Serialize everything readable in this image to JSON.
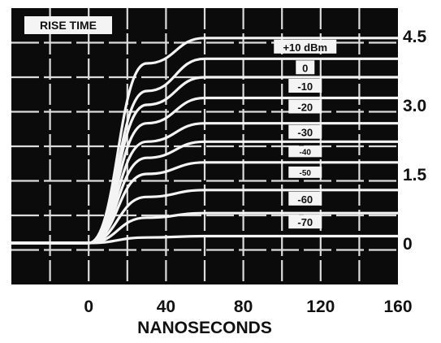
{
  "colors": {
    "background": "#ffffff",
    "screen": "#0b0b0b",
    "trace": "#f4f4f4",
    "grid": "#dcdcdc",
    "text": "#111111"
  },
  "chart_data": {
    "type": "line",
    "title": "RISE TIME",
    "xlabel": "NANOSECONDS",
    "ylabel": "",
    "xlim": [
      -40,
      160
    ],
    "ylim": [
      -0.9,
      5.1
    ],
    "x_ticks": [
      "0",
      "40",
      "80",
      "120",
      "160"
    ],
    "y_ticks": [
      "0",
      "1.5",
      "3.0",
      "4.5"
    ],
    "grid": true,
    "series": [
      {
        "name": "+10 dBm",
        "x": [
          -40,
          0,
          30,
          60,
          90,
          120,
          160
        ],
        "y": [
          0,
          0,
          3.9,
          4.45,
          4.45,
          4.45,
          4.45
        ]
      },
      {
        "name": "0",
        "x": [
          -40,
          0,
          30,
          60,
          90,
          120,
          160
        ],
        "y": [
          0,
          0,
          3.3,
          4.0,
          4.0,
          4.0,
          4.0
        ]
      },
      {
        "name": "-10",
        "x": [
          -40,
          0,
          30,
          60,
          90,
          120,
          160
        ],
        "y": [
          0,
          0,
          3.0,
          3.6,
          3.6,
          3.6,
          3.6
        ]
      },
      {
        "name": "-20",
        "x": [
          -40,
          0,
          30,
          60,
          90,
          120,
          160
        ],
        "y": [
          0,
          0,
          2.6,
          3.15,
          3.15,
          3.15,
          3.15
        ]
      },
      {
        "name": "-30",
        "x": [
          -40,
          0,
          30,
          60,
          90,
          120,
          160
        ],
        "y": [
          0,
          0,
          2.2,
          2.6,
          2.6,
          2.6,
          2.6
        ]
      },
      {
        "name": "-40",
        "x": [
          -40,
          0,
          30,
          60,
          90,
          120,
          160
        ],
        "y": [
          0,
          0,
          1.85,
          2.2,
          2.2,
          2.2,
          2.2
        ]
      },
      {
        "name": "-50",
        "x": [
          -40,
          0,
          30,
          60,
          90,
          120,
          160
        ],
        "y": [
          0,
          0,
          1.5,
          1.75,
          1.75,
          1.75,
          1.75
        ]
      },
      {
        "name": "-60",
        "x": [
          -40,
          0,
          30,
          60,
          90,
          120,
          160
        ],
        "y": [
          0,
          0,
          1.0,
          1.15,
          1.15,
          1.15,
          1.15
        ]
      },
      {
        "name": "-70",
        "x": [
          -40,
          0,
          30,
          60,
          90,
          120,
          160
        ],
        "y": [
          0,
          0,
          0.55,
          0.65,
          0.65,
          0.65,
          0.65
        ]
      },
      {
        "name": "",
        "x": [
          -40,
          0,
          30,
          60,
          90,
          120,
          160
        ],
        "y": [
          0,
          0,
          0.12,
          0.15,
          0.15,
          0.15,
          0.15
        ]
      }
    ]
  }
}
